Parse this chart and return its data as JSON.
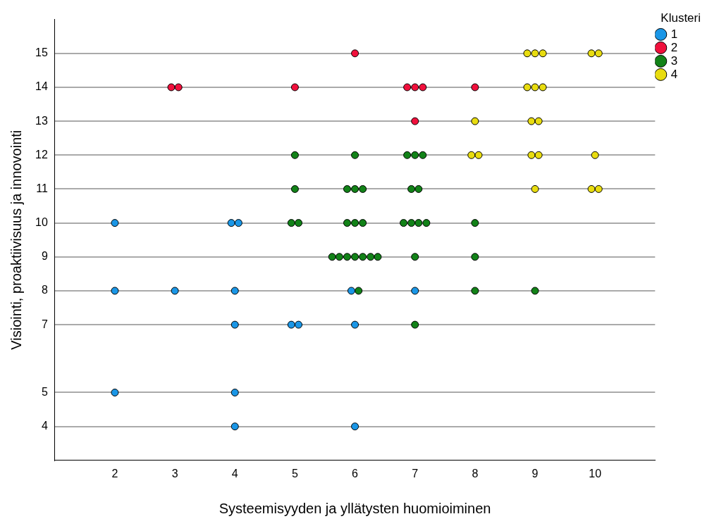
{
  "chart_data": {
    "type": "scatter",
    "xlabel": "Systeemisyyden ja yllätysten huomioiminen",
    "ylabel": "Visiointi, proaktiivisuus ja innovointi",
    "legend_title": "Klusteri",
    "legend": "top right",
    "grid": "y",
    "marker": "circle",
    "xlim": [
      1,
      11
    ],
    "ylim": [
      3,
      16
    ],
    "xticks": [
      2,
      3,
      4,
      5,
      6,
      7,
      8,
      9,
      10
    ],
    "yticks": [
      4,
      5,
      7,
      8,
      9,
      10,
      11,
      12,
      13,
      14,
      15
    ],
    "series": [
      {
        "name": "1",
        "color": "#1a96e6",
        "x": [
          2,
          3.94,
          4.06,
          2,
          3,
          4,
          5.94,
          7,
          4,
          4.94,
          5.06,
          6,
          2,
          4,
          4,
          6
        ],
        "values": [
          10,
          10,
          10,
          8,
          8,
          8,
          8,
          8,
          7,
          7,
          7,
          7,
          5,
          5,
          4,
          4
        ]
      },
      {
        "name": "2",
        "color": "#f0103c",
        "x": [
          6,
          2.94,
          3.06,
          5,
          6.87,
          7,
          7.13,
          8,
          7
        ],
        "values": [
          15,
          14,
          14,
          14,
          14,
          14,
          14,
          14,
          13
        ]
      },
      {
        "name": "3",
        "color": "#128218",
        "x": [
          5,
          6,
          6.87,
          7,
          7.13,
          5,
          5.87,
          6,
          6.13,
          6.94,
          7.06,
          4.94,
          5.06,
          5.87,
          6,
          6.13,
          6.81,
          6.94,
          7.06,
          7.19,
          8,
          5.62,
          5.74,
          5.87,
          6,
          6.13,
          6.26,
          6.38,
          7,
          8,
          6.06,
          8,
          9,
          7
        ],
        "values": [
          12,
          12,
          12,
          12,
          12,
          11,
          11,
          11,
          11,
          11,
          11,
          10,
          10,
          10,
          10,
          10,
          10,
          10,
          10,
          10,
          10,
          9,
          9,
          9,
          9,
          9,
          9,
          9,
          9,
          9,
          8,
          8,
          8,
          7
        ]
      },
      {
        "name": "4",
        "color": "#e8dc10",
        "x": [
          8.87,
          9,
          9.13,
          9.94,
          10.06,
          8.87,
          9,
          9.13,
          8,
          8.94,
          9.06,
          7.94,
          8.06,
          8.94,
          9.06,
          10,
          9,
          9.94,
          10.06
        ],
        "values": [
          15,
          15,
          15,
          15,
          15,
          14,
          14,
          14,
          13,
          13,
          13,
          12,
          12,
          12,
          12,
          12,
          11,
          11,
          11
        ]
      }
    ]
  }
}
